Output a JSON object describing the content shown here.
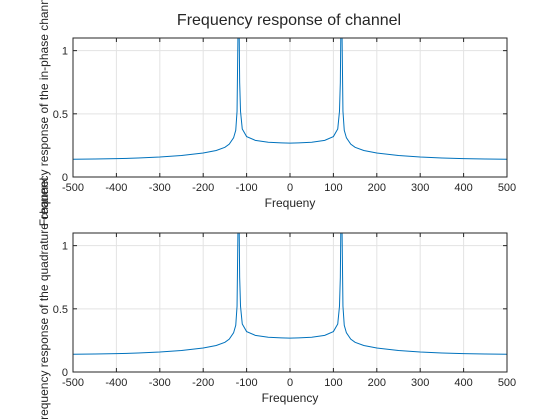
{
  "figure_title": "Frequency response of channel",
  "colors": {
    "trace": "#0072bd",
    "axes": "#262626",
    "grid": "#e3e3e3"
  },
  "chart_data": [
    {
      "type": "line",
      "title": "Frequency response of channel",
      "xlabel": "Frequeny",
      "ylabel": "Frequency response of the in-phase channel",
      "xlim": [
        -500,
        500
      ],
      "ylim": [
        0,
        1.1
      ],
      "xticks": [
        "-500",
        "-400",
        "-300",
        "-200",
        "-100",
        "0",
        "100",
        "200",
        "300",
        "400",
        "500"
      ],
      "yticks": [
        "0",
        "0.5",
        "1"
      ],
      "grid": true,
      "series": [
        {
          "x": [
            -500,
            -450,
            -400,
            -350,
            -300,
            -250,
            -200,
            -170,
            -150,
            -140,
            -130,
            -125,
            -122,
            -120,
            -119,
            -118,
            -117,
            -116,
            -114,
            -110,
            -100,
            -80,
            -50,
            -20,
            0,
            20,
            50,
            80,
            100,
            110,
            114,
            116,
            117,
            118,
            119,
            120,
            122,
            125,
            130,
            140,
            150,
            170,
            200,
            250,
            300,
            350,
            400,
            450,
            500
          ],
          "y": [
            0.14,
            0.142,
            0.145,
            0.15,
            0.158,
            0.17,
            0.19,
            0.21,
            0.235,
            0.26,
            0.31,
            0.37,
            0.52,
            1.1,
            1.1,
            1.1,
            1.1,
            0.75,
            0.52,
            0.38,
            0.32,
            0.29,
            0.275,
            0.27,
            0.268,
            0.27,
            0.275,
            0.29,
            0.32,
            0.38,
            0.52,
            0.75,
            1.1,
            1.1,
            1.1,
            1.1,
            0.52,
            0.37,
            0.31,
            0.26,
            0.235,
            0.21,
            0.19,
            0.17,
            0.158,
            0.15,
            0.145,
            0.142,
            0.14
          ]
        }
      ]
    },
    {
      "type": "line",
      "title": "",
      "xlabel": "Frequency",
      "ylabel": "Frequency response of the quadrature channel",
      "xlim": [
        -500,
        500
      ],
      "ylim": [
        0,
        1.1
      ],
      "xticks": [
        "-500",
        "-400",
        "-300",
        "-200",
        "-100",
        "0",
        "100",
        "200",
        "300",
        "400",
        "500"
      ],
      "yticks": [
        "0",
        "0.5",
        "1"
      ],
      "grid": true,
      "series": [
        {
          "x": [
            -500,
            -450,
            -400,
            -350,
            -300,
            -250,
            -200,
            -170,
            -150,
            -140,
            -130,
            -125,
            -122,
            -120,
            -119,
            -118,
            -117,
            -116,
            -114,
            -110,
            -100,
            -80,
            -50,
            -20,
            0,
            20,
            50,
            80,
            100,
            110,
            114,
            116,
            117,
            118,
            119,
            120,
            122,
            125,
            130,
            140,
            150,
            170,
            200,
            250,
            300,
            350,
            400,
            450,
            500
          ],
          "y": [
            0.14,
            0.142,
            0.145,
            0.15,
            0.158,
            0.17,
            0.19,
            0.21,
            0.235,
            0.26,
            0.31,
            0.37,
            0.52,
            1.1,
            1.1,
            1.1,
            1.1,
            0.75,
            0.52,
            0.38,
            0.32,
            0.29,
            0.275,
            0.27,
            0.268,
            0.27,
            0.275,
            0.29,
            0.32,
            0.38,
            0.52,
            0.75,
            1.1,
            1.1,
            1.1,
            1.1,
            0.52,
            0.37,
            0.31,
            0.26,
            0.235,
            0.21,
            0.19,
            0.17,
            0.158,
            0.15,
            0.145,
            0.142,
            0.14
          ]
        }
      ]
    }
  ]
}
